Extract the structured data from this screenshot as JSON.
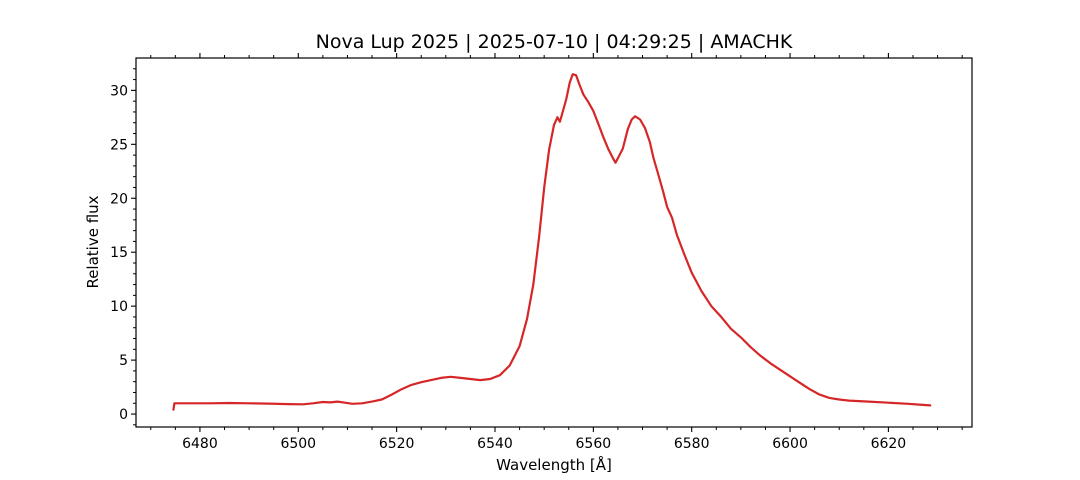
{
  "chart_data": {
    "type": "line",
    "title": "Nova Lup 2025 | 2025-07-10 | 04:29:25 | AMACHK",
    "xlabel": "Wavelength [Å]",
    "ylabel": "Relative flux",
    "xlim": [
      6467,
      6637
    ],
    "ylim": [
      -1.2,
      33
    ],
    "xticks": [
      6480,
      6500,
      6520,
      6540,
      6560,
      6580,
      6600,
      6620
    ],
    "yticks": [
      0,
      5,
      10,
      15,
      20,
      25,
      30
    ],
    "grid": false,
    "line_color": "#d62728",
    "series": [
      {
        "points": [
          [
            6474.6,
            0.4
          ],
          [
            6474.8,
            1.0
          ],
          [
            6478,
            1.0
          ],
          [
            6482,
            1.0
          ],
          [
            6486,
            1.02
          ],
          [
            6490,
            1.0
          ],
          [
            6494,
            0.97
          ],
          [
            6498,
            0.92
          ],
          [
            6501,
            0.9
          ],
          [
            6503,
            1.0
          ],
          [
            6505,
            1.12
          ],
          [
            6506.5,
            1.08
          ],
          [
            6508,
            1.15
          ],
          [
            6509.5,
            1.05
          ],
          [
            6511,
            0.95
          ],
          [
            6513,
            1.0
          ],
          [
            6515,
            1.15
          ],
          [
            6517,
            1.35
          ],
          [
            6519,
            1.8
          ],
          [
            6521,
            2.3
          ],
          [
            6523,
            2.7
          ],
          [
            6525,
            2.95
          ],
          [
            6527,
            3.15
          ],
          [
            6529,
            3.35
          ],
          [
            6531,
            3.45
          ],
          [
            6533,
            3.35
          ],
          [
            6535,
            3.25
          ],
          [
            6537,
            3.15
          ],
          [
            6539,
            3.25
          ],
          [
            6541,
            3.6
          ],
          [
            6543,
            4.5
          ],
          [
            6545,
            6.3
          ],
          [
            6546.5,
            8.8
          ],
          [
            6547.8,
            12.0
          ],
          [
            6549,
            16.5
          ],
          [
            6550,
            21.0
          ],
          [
            6551,
            24.5
          ],
          [
            6552,
            26.8
          ],
          [
            6552.7,
            27.5
          ],
          [
            6553.2,
            27.1
          ],
          [
            6553.7,
            27.9
          ],
          [
            6554.5,
            29.2
          ],
          [
            6555.2,
            30.7
          ],
          [
            6555.8,
            31.5
          ],
          [
            6556.5,
            31.4
          ],
          [
            6557.2,
            30.5
          ],
          [
            6558,
            29.6
          ],
          [
            6559,
            28.9
          ],
          [
            6560,
            28.1
          ],
          [
            6561,
            26.9
          ],
          [
            6562,
            25.7
          ],
          [
            6563,
            24.6
          ],
          [
            6564,
            23.7
          ],
          [
            6564.5,
            23.3
          ],
          [
            6565.2,
            23.9
          ],
          [
            6566,
            24.6
          ],
          [
            6567,
            26.4
          ],
          [
            6567.8,
            27.3
          ],
          [
            6568.5,
            27.6
          ],
          [
            6569.5,
            27.3
          ],
          [
            6570.5,
            26.5
          ],
          [
            6571.5,
            25.2
          ],
          [
            6572.2,
            23.8
          ],
          [
            6573.2,
            22.2
          ],
          [
            6574.2,
            20.6
          ],
          [
            6575,
            19.2
          ],
          [
            6576,
            18.2
          ],
          [
            6577,
            16.6
          ],
          [
            6578.5,
            14.8
          ],
          [
            6580,
            13.1
          ],
          [
            6582,
            11.4
          ],
          [
            6584,
            10.0
          ],
          [
            6586,
            9.0
          ],
          [
            6588,
            7.9
          ],
          [
            6590,
            7.1
          ],
          [
            6592,
            6.2
          ],
          [
            6594,
            5.4
          ],
          [
            6596,
            4.7
          ],
          [
            6598,
            4.1
          ],
          [
            6600,
            3.5
          ],
          [
            6602,
            2.9
          ],
          [
            6604,
            2.3
          ],
          [
            6606,
            1.8
          ],
          [
            6608,
            1.5
          ],
          [
            6610,
            1.35
          ],
          [
            6612,
            1.25
          ],
          [
            6616,
            1.15
          ],
          [
            6620,
            1.05
          ],
          [
            6624,
            0.95
          ],
          [
            6627,
            0.85
          ],
          [
            6628.5,
            0.8
          ]
        ]
      }
    ]
  }
}
